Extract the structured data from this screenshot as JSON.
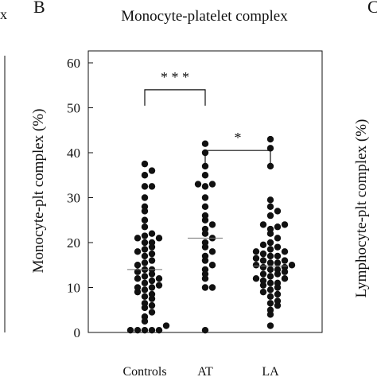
{
  "panel_labels": {
    "left": "x",
    "center": "B",
    "right": "C"
  },
  "right_panel_ylabel": "Lymphocyte-plt complex (%)",
  "chart_data": {
    "type": "scatter",
    "title": "Monocyte-platelet complex",
    "ylabel": "Monocyte-plt complex (%)",
    "xlabel": "",
    "ylim": [
      0,
      65
    ],
    "yticks": [
      0,
      10,
      20,
      30,
      40,
      50,
      60
    ],
    "grid": false,
    "categories": [
      "Controls",
      "AT",
      "LA"
    ],
    "series": [
      {
        "category": "Controls",
        "mean": 14,
        "values": [
          0.5,
          0.5,
          0.5,
          0.5,
          0.5,
          1.5,
          2.5,
          3.5,
          4.5,
          5.5,
          6,
          6.5,
          7.5,
          8,
          8.5,
          9,
          9.5,
          10,
          10,
          10.5,
          11,
          11.5,
          12,
          12,
          12.5,
          13,
          13.5,
          14,
          14,
          15,
          15.5,
          16,
          17,
          17.5,
          18,
          18.5,
          19,
          20,
          20,
          21,
          21,
          21.5,
          22,
          23.5,
          25,
          27,
          28,
          30,
          32.5,
          32.5,
          35,
          36,
          37.5
        ]
      },
      {
        "category": "AT",
        "mean": 21,
        "values": [
          0.5,
          10,
          10,
          12,
          13,
          14,
          15,
          16,
          17,
          18,
          19,
          20,
          21,
          22,
          23,
          24,
          25,
          26,
          28,
          30,
          32.5,
          33,
          33,
          35,
          37,
          40,
          42
        ]
      },
      {
        "category": "LA",
        "mean": 14.8,
        "values": [
          1.5,
          4,
          5,
          6,
          6.5,
          7,
          8,
          8.5,
          9,
          9.5,
          10,
          10.5,
          11,
          11,
          11.5,
          12,
          12,
          12.5,
          13,
          13,
          13.5,
          14,
          14,
          14.5,
          14.5,
          15,
          15,
          15.5,
          15.5,
          16,
          16,
          16.5,
          17,
          17,
          17.5,
          18,
          18,
          18.5,
          19,
          19.5,
          20,
          21,
          22,
          23,
          23.5,
          24,
          24,
          26,
          27,
          28,
          29.5,
          37,
          41,
          43
        ]
      }
    ],
    "significance": [
      {
        "from": "Controls",
        "to": "AT",
        "label": "* * *"
      },
      {
        "from": "AT",
        "to": "LA",
        "label": "*"
      }
    ]
  }
}
